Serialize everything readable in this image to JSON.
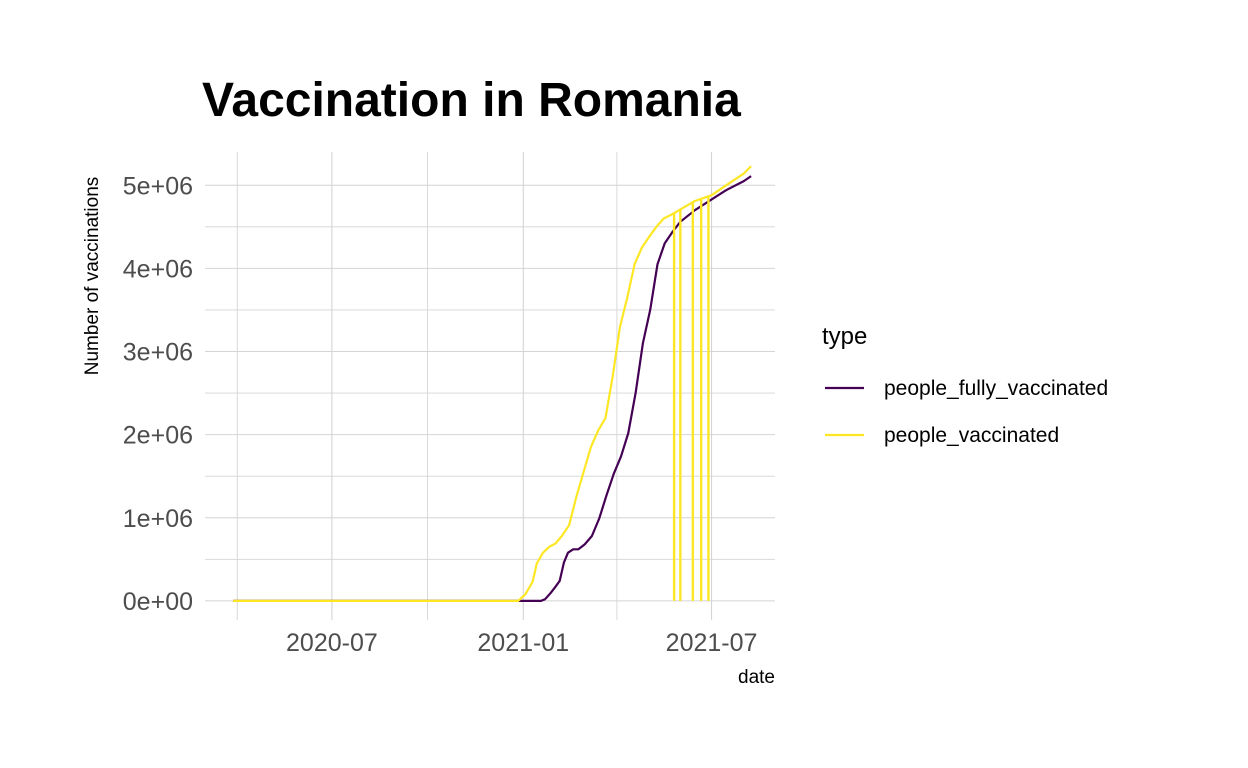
{
  "chart_data": {
    "type": "line",
    "title": "Vaccination in Romania",
    "xlabel": "date",
    "ylabel": "Number of vaccinations",
    "x_ticks": [
      {
        "date": "2020-07-01",
        "label": "2020-07"
      },
      {
        "date": "2021-01-01",
        "label": "2021-01"
      },
      {
        "date": "2021-07-01",
        "label": "2021-07"
      }
    ],
    "y_ticks": [
      {
        "value": 0,
        "label": "0e+00"
      },
      {
        "value": 1000000,
        "label": "1e+06"
      },
      {
        "value": 2000000,
        "label": "2e+06"
      },
      {
        "value": 3000000,
        "label": "3e+06"
      },
      {
        "value": 4000000,
        "label": "4e+06"
      },
      {
        "value": 5000000,
        "label": "5e+06"
      }
    ],
    "xlim": [
      "2020-03-01",
      "2021-08-31"
    ],
    "ylim": [
      -230000,
      5400000
    ],
    "grid": true,
    "legend": {
      "title": "type",
      "position": "right"
    },
    "series": [
      {
        "name": "people_fully_vaccinated",
        "color": "#440154",
        "points": [
          [
            "2020-03-28",
            0
          ],
          [
            "2020-07-01",
            0
          ],
          [
            "2020-10-01",
            0
          ],
          [
            "2021-01-01",
            0
          ],
          [
            "2021-01-18",
            0
          ],
          [
            "2021-01-22",
            20000
          ],
          [
            "2021-01-27",
            90000
          ],
          [
            "2021-02-01",
            170000
          ],
          [
            "2021-02-05",
            240000
          ],
          [
            "2021-02-09",
            460000
          ],
          [
            "2021-02-13",
            580000
          ],
          [
            "2021-02-18",
            620000
          ],
          [
            "2021-02-23",
            620000
          ],
          [
            "2021-03-01",
            680000
          ],
          [
            "2021-03-08",
            780000
          ],
          [
            "2021-03-15",
            990000
          ],
          [
            "2021-03-22",
            1270000
          ],
          [
            "2021-03-29",
            1530000
          ],
          [
            "2021-04-05",
            1740000
          ],
          [
            "2021-04-12",
            2020000
          ],
          [
            "2021-04-19",
            2500000
          ],
          [
            "2021-04-26",
            3100000
          ],
          [
            "2021-05-03",
            3500000
          ],
          [
            "2021-05-10",
            4050000
          ],
          [
            "2021-05-17",
            4300000
          ],
          [
            "2021-05-24",
            4430000
          ],
          [
            "2021-06-01",
            4560000
          ],
          [
            "2021-06-15",
            4700000
          ],
          [
            "2021-07-01",
            4830000
          ],
          [
            "2021-07-15",
            4940000
          ],
          [
            "2021-08-01",
            5050000
          ],
          [
            "2021-08-08",
            5110000
          ]
        ]
      },
      {
        "name": "people_vaccinated",
        "color": "#fde725",
        "points": [
          [
            "2020-03-28",
            0
          ],
          [
            "2020-07-01",
            0
          ],
          [
            "2020-10-01",
            0
          ],
          [
            "2020-12-27",
            0
          ],
          [
            "2021-01-03",
            80000
          ],
          [
            "2021-01-10",
            230000
          ],
          [
            "2021-01-14",
            450000
          ],
          [
            "2021-01-20",
            580000
          ],
          [
            "2021-01-26",
            650000
          ],
          [
            "2021-02-01",
            690000
          ],
          [
            "2021-02-07",
            780000
          ],
          [
            "2021-02-14",
            910000
          ],
          [
            "2021-02-21",
            1250000
          ],
          [
            "2021-02-28",
            1550000
          ],
          [
            "2021-03-07",
            1850000
          ],
          [
            "2021-03-14",
            2050000
          ],
          [
            "2021-03-21",
            2200000
          ],
          [
            "2021-03-28",
            2700000
          ],
          [
            "2021-04-04",
            3300000
          ],
          [
            "2021-04-11",
            3650000
          ],
          [
            "2021-04-18",
            4050000
          ],
          [
            "2021-04-25",
            4250000
          ],
          [
            "2021-05-02",
            4380000
          ],
          [
            "2021-05-09",
            4500000
          ],
          [
            "2021-05-16",
            4600000
          ],
          [
            "2021-05-24",
            4650000
          ],
          [
            "2021-06-01",
            4710000
          ],
          [
            "2021-06-15",
            4810000
          ],
          [
            "2021-07-01",
            4880000
          ],
          [
            "2021-07-15",
            5000000
          ],
          [
            "2021-08-01",
            5140000
          ],
          [
            "2021-08-08",
            5230000
          ]
        ],
        "drops_to_zero": [
          "2021-05-26",
          "2021-06-01",
          "2021-06-13",
          "2021-06-21",
          "2021-06-28"
        ]
      }
    ]
  }
}
